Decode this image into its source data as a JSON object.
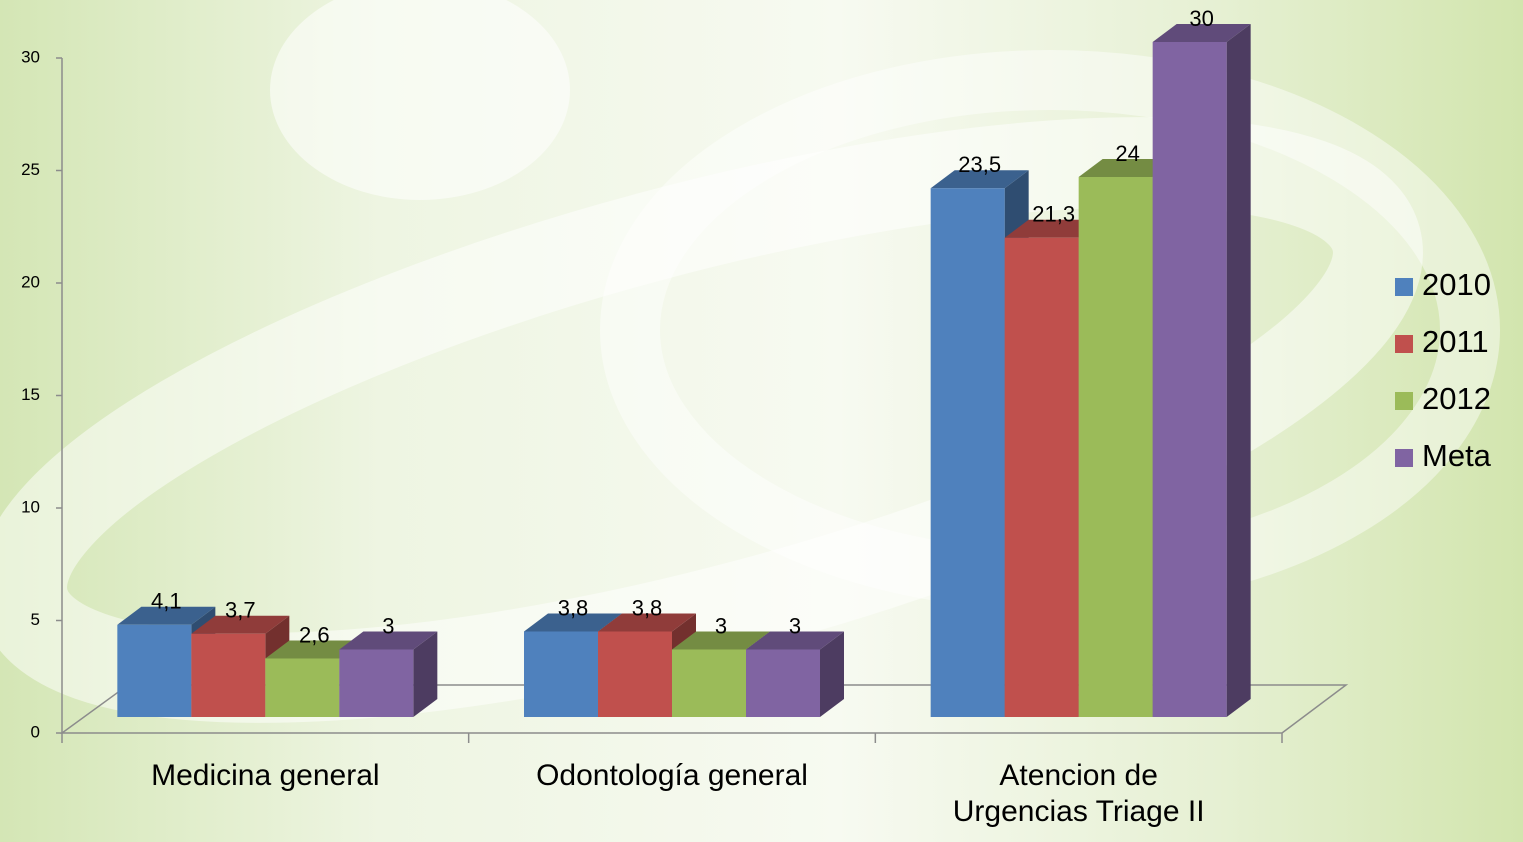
{
  "chart_data": {
    "type": "bar3d",
    "categories": [
      "Medicina general",
      "Odontología general",
      "Atencion de Urgencias Triage II"
    ],
    "series": [
      {
        "name": "2010",
        "color": "#4f81bd",
        "values": [
          4.1,
          3.8,
          23.5
        ],
        "value_labels": [
          "4,1",
          "3,8",
          "23,5"
        ]
      },
      {
        "name": "2011",
        "color": "#c0504d",
        "values": [
          3.7,
          3.8,
          21.3
        ],
        "value_labels": [
          "3,7",
          "3,8",
          "21,3"
        ]
      },
      {
        "name": "2012",
        "color": "#9bbb59",
        "values": [
          2.6,
          3,
          24
        ],
        "value_labels": [
          "2,6",
          "3",
          "24"
        ]
      },
      {
        "name": "Meta",
        "color": "#8064a2",
        "values": [
          3,
          3,
          30
        ],
        "value_labels": [
          "3",
          "3",
          "30"
        ]
      }
    ],
    "ylim": [
      0,
      30
    ],
    "yticks": [
      0,
      5,
      10,
      15,
      20,
      25,
      30
    ],
    "legend": "right"
  }
}
